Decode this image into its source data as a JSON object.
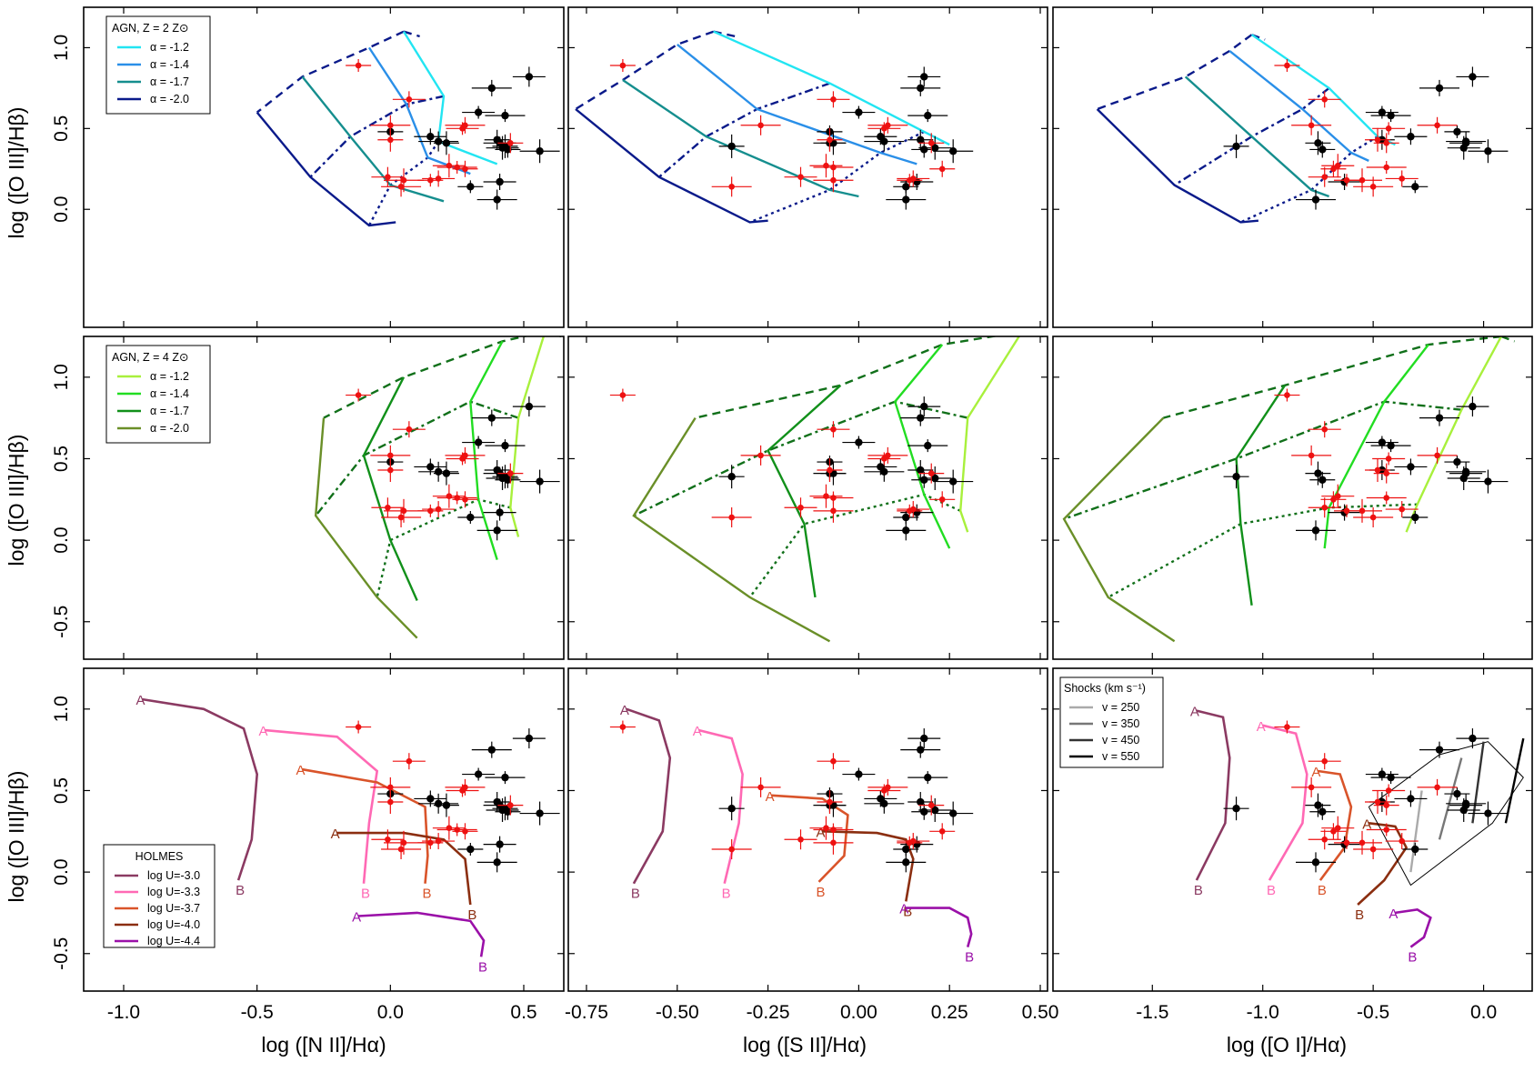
{
  "chart_data": {
    "type": "scatter",
    "title": "",
    "grid": false,
    "x_ranges": [
      [
        -1.15,
        0.65
      ],
      [
        -0.8,
        0.52
      ],
      [
        -1.95,
        0.22
      ]
    ],
    "ylim": [
      -0.73,
      1.25
    ],
    "columns": [
      {
        "xlabel": "log ([N II]/Hα)",
        "xticks": [
          -1.0,
          -0.5,
          0.0,
          0.5
        ],
        "ticklabels": [
          "-1.0",
          "-0.5",
          "0.0",
          "0.5"
        ]
      },
      {
        "xlabel": "log ([S II]/Hα)",
        "xticks": [
          -0.75,
          -0.5,
          -0.25,
          0.0,
          0.25,
          0.5
        ],
        "ticklabels": [
          "-0.75",
          "-0.50",
          "-0.25",
          "0.00",
          "0.25",
          "0.50"
        ]
      },
      {
        "xlabel": "log ([O I]/Hα)",
        "xticks": [
          -1.5,
          -1.0,
          -0.5,
          0.0
        ],
        "ticklabels": [
          "-1.5",
          "-1.0",
          "-0.5",
          "0.0"
        ]
      }
    ],
    "ylabel": "log ([O III]/Hβ)",
    "row_yticks": [
      {
        "ticks": [
          0.0,
          0.5,
          1.0
        ],
        "labels": [
          "0.0",
          "0.5",
          "1.0"
        ]
      },
      {
        "ticks": [
          -0.5,
          0.0,
          0.5,
          1.0
        ],
        "labels": [
          "-0.5",
          "0.0",
          "0.5",
          "1.0"
        ]
      },
      {
        "ticks": [
          -0.5,
          0.0,
          0.5,
          1.0
        ],
        "labels": [
          "-0.5",
          "0.0",
          "0.5",
          "1.0"
        ]
      }
    ],
    "observations": {
      "black": [
        {
          "x": [
            0.0,
            -0.08,
            -0.12
          ],
          "y": 0.48
        },
        {
          "x": [
            0.15,
            0.06,
            -0.33
          ],
          "y": 0.45
        },
        {
          "x": [
            0.18,
            0.07,
            -0.08
          ],
          "y": 0.42
        },
        {
          "x": [
            0.21,
            -0.07,
            -0.75
          ],
          "y": 0.41
        },
        {
          "x": [
            0.33,
            0.0,
            -0.46
          ],
          "y": 0.6
        },
        {
          "x": [
            0.38,
            0.17,
            -0.2
          ],
          "y": 0.75
        },
        {
          "x": [
            0.4,
            0.17,
            -0.46
          ],
          "y": 0.43
        },
        {
          "x": [
            0.42,
            0.21,
            -0.09
          ],
          "y": 0.38
        },
        {
          "x": [
            0.43,
            0.19,
            -0.42
          ],
          "y": 0.58
        },
        {
          "x": [
            0.44,
            0.18,
            -0.73
          ],
          "y": 0.37
        },
        {
          "x": [
            0.52,
            0.18,
            -0.05
          ],
          "y": 0.82
        },
        {
          "x": [
            0.56,
            0.26,
            0.02
          ],
          "y": 0.36
        },
        {
          "x": [
            0.3,
            0.13,
            -0.31
          ],
          "y": 0.14
        },
        {
          "x": [
            0.41,
            0.16,
            -0.63
          ],
          "y": 0.17
        },
        {
          "x": [
            0.4,
            0.13,
            -0.76
          ],
          "y": 0.06
        },
        {
          "x": [
            0.43,
            -0.35,
            -1.12
          ],
          "y": 0.39
        },
        {
          "x": [
            0.41,
            -0.08,
            -0.08
          ],
          "y": 0.41
        }
      ],
      "red": [
        {
          "x": [
            -0.12,
            -0.65,
            -0.89
          ],
          "y": 0.89
        },
        {
          "x": [
            0.07,
            -0.07,
            -0.72
          ],
          "y": 0.68
        },
        {
          "x": [
            0.0,
            -0.27,
            -0.78
          ],
          "y": 0.52
        },
        {
          "x": [
            0.0,
            -0.08,
            -0.48
          ],
          "y": 0.43
        },
        {
          "x": [
            0.27,
            0.07,
            -0.43
          ],
          "y": 0.5
        },
        {
          "x": [
            0.28,
            0.08,
            -0.21
          ],
          "y": 0.52
        },
        {
          "x": [
            0.45,
            0.2,
            -0.44
          ],
          "y": 0.41
        },
        {
          "x": [
            0.22,
            -0.09,
            -0.66
          ],
          "y": 0.27
        },
        {
          "x": [
            0.25,
            -0.07,
            -0.44
          ],
          "y": 0.26
        },
        {
          "x": [
            0.28,
            0.23,
            -0.68
          ],
          "y": 0.25
        },
        {
          "x": [
            -0.01,
            -0.16,
            -0.72
          ],
          "y": 0.2
        },
        {
          "x": [
            0.05,
            -0.07,
            -0.55
          ],
          "y": 0.18
        },
        {
          "x": [
            0.15,
            0.14,
            -0.62
          ],
          "y": 0.18
        },
        {
          "x": [
            0.18,
            0.15,
            -0.37
          ],
          "y": 0.19
        },
        {
          "x": [
            0.04,
            -0.35,
            -0.5
          ],
          "y": 0.14
        }
      ]
    },
    "agn_z2": {
      "legend_title": "AGN, Z = 2 Z⊙",
      "series": [
        {
          "name": "α = -1.2",
          "color": "#22e5f2",
          "x": [
            [
              0.05,
              0.2,
              0.18,
              0.4
            ],
            [
              -0.4,
              -0.08,
              0.18,
              0.25
            ],
            [
              -1.05,
              -0.7,
              -0.48,
              -0.4
            ]
          ],
          "y": [
            [
              1.1,
              0.7,
              0.42,
              0.28
            ],
            [
              1.1,
              0.78,
              0.48,
              0.4
            ],
            [
              1.08,
              0.75,
              0.45,
              0.4
            ]
          ]
        },
        {
          "name": "α = -1.4",
          "color": "#2a8fe8",
          "x": [
            [
              -0.08,
              0.06,
              0.14,
              0.3
            ],
            [
              -0.5,
              -0.28,
              0.06,
              0.16
            ],
            [
              -1.15,
              -0.82,
              -0.6,
              -0.52
            ]
          ],
          "y": [
            [
              1.0,
              0.65,
              0.32,
              0.22
            ],
            [
              1.02,
              0.62,
              0.35,
              0.28
            ],
            [
              0.98,
              0.62,
              0.35,
              0.3
            ]
          ]
        },
        {
          "name": "α = -1.7",
          "color": "#158e8e",
          "x": [
            [
              -0.33,
              -0.15,
              0.0,
              0.2
            ],
            [
              -0.65,
              -0.42,
              -0.08,
              0.0
            ],
            [
              -1.35,
              -1.05,
              -0.78,
              -0.7
            ]
          ],
          "y": [
            [
              0.82,
              0.45,
              0.15,
              0.05
            ],
            [
              0.8,
              0.45,
              0.12,
              0.08
            ],
            [
              0.82,
              0.45,
              0.12,
              0.08
            ]
          ]
        },
        {
          "name": "α = -2.0",
          "color": "#0a1a8a",
          "x": [
            [
              -0.5,
              -0.3,
              -0.08,
              0.02
            ],
            [
              -0.78,
              -0.55,
              -0.3,
              -0.25
            ],
            [
              -1.75,
              -1.4,
              -1.1,
              -1.02
            ]
          ],
          "y": [
            [
              0.6,
              0.2,
              -0.1,
              -0.08
            ],
            [
              0.62,
              0.2,
              -0.08,
              -0.07
            ],
            [
              0.62,
              0.15,
              -0.08,
              -0.07
            ]
          ]
        }
      ]
    },
    "agn_z4": {
      "legend_title": "AGN, Z = 4 Z⊙",
      "series": [
        {
          "name": "α = -1.2",
          "color": "#a8f03c",
          "x": [
            [
              0.58,
              0.48,
              0.45,
              0.48
            ],
            [
              0.45,
              0.3,
              0.28,
              0.3
            ],
            [
              0.08,
              -0.1,
              -0.3,
              -0.35
            ]
          ],
          "y": [
            [
              1.28,
              0.75,
              0.2,
              0.02
            ],
            [
              1.28,
              0.75,
              0.18,
              0.05
            ],
            [
              1.25,
              0.8,
              0.22,
              0.05
            ]
          ]
        },
        {
          "name": "α = -1.4",
          "color": "#22dd22",
          "x": [
            [
              0.42,
              0.3,
              0.33,
              0.4
            ],
            [
              0.23,
              0.1,
              0.18,
              0.25
            ],
            [
              -0.25,
              -0.45,
              -0.7,
              -0.72
            ]
          ],
          "y": [
            [
              1.22,
              0.85,
              0.25,
              -0.12
            ],
            [
              1.2,
              0.85,
              0.28,
              -0.05
            ],
            [
              1.2,
              0.85,
              0.2,
              -0.05
            ]
          ]
        },
        {
          "name": "α = -1.7",
          "color": "#11901a",
          "x": [
            [
              0.05,
              -0.1,
              0.0,
              0.1
            ],
            [
              -0.05,
              -0.25,
              -0.15,
              -0.12
            ],
            [
              -0.9,
              -1.12,
              -1.1,
              -1.05
            ]
          ],
          "y": [
            [
              1.0,
              0.52,
              0.0,
              -0.37
            ],
            [
              0.95,
              0.55,
              0.1,
              -0.35
            ],
            [
              0.95,
              0.5,
              0.1,
              -0.4
            ]
          ]
        },
        {
          "name": "α = -2.0",
          "color": "#6a8f28",
          "x": [
            [
              -0.25,
              -0.28,
              -0.05,
              0.1
            ],
            [
              -0.45,
              -0.62,
              -0.3,
              -0.08
            ],
            [
              -1.45,
              -1.9,
              -1.7,
              -1.4
            ]
          ],
          "y": [
            [
              0.75,
              0.15,
              -0.35,
              -0.6
            ],
            [
              0.75,
              0.15,
              -0.35,
              -0.62
            ],
            [
              0.75,
              0.13,
              -0.35,
              -0.62
            ]
          ]
        }
      ]
    },
    "holmes": {
      "legend_title": "HOLMES",
      "series": [
        {
          "name": "log U=-3.0",
          "color": "#8b3a62"
        },
        {
          "name": "log U=-3.3",
          "color": "#ff69b4"
        },
        {
          "name": "log U=-3.7",
          "color": "#d9542a"
        },
        {
          "name": "log U=-4.0",
          "color": "#8b2e10"
        },
        {
          "name": "log U=-4.4",
          "color": "#9a10a8"
        }
      ],
      "endpoints": [
        "A",
        "B"
      ]
    },
    "shocks": {
      "legend_title": "Shocks (km s⁻¹)",
      "series": [
        {
          "name": "v = 250",
          "color": "#aaaaaa"
        },
        {
          "name": "v = 350",
          "color": "#777777"
        },
        {
          "name": "v = 450",
          "color": "#333333"
        },
        {
          "name": "v = 550",
          "color": "#000000"
        }
      ]
    }
  }
}
